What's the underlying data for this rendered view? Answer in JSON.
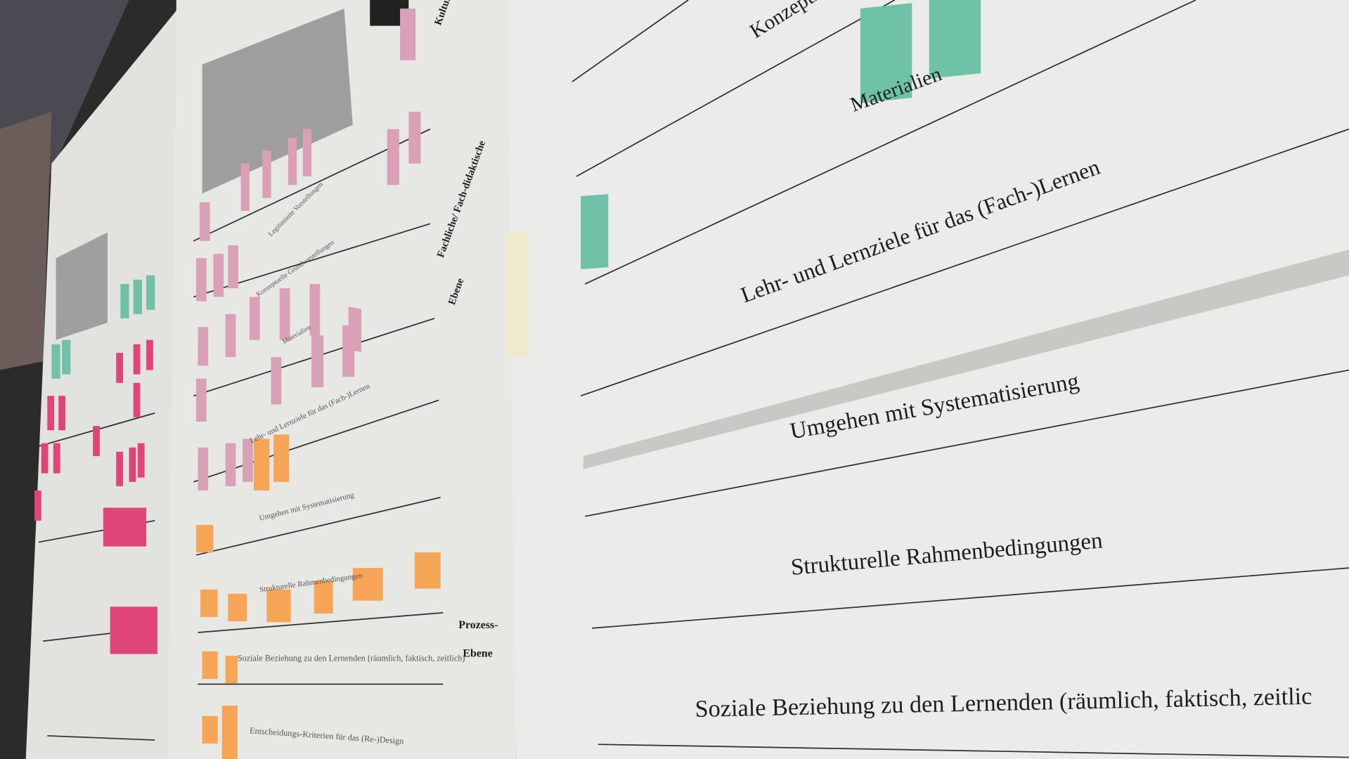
{
  "colors": {
    "paper": "#ebebe9",
    "paper_left": "#e4e4e2",
    "teal_note": "#6fc2a8",
    "pink_note": "#d9a0b8",
    "magenta_note": "#e0457a",
    "orange_note": "#f6a456",
    "wall": "#2a2b2a"
  },
  "main_poster": {
    "rows": [
      "Konzepti",
      "Materialien",
      "Lehr- und Lernziele für das (Fach-)Lernen",
      "Umgehen mit Systematisierung",
      "Strukturelle Rahmenbedingungen",
      "Soziale Beziehung zu den Lernenden (räumlich, faktisch, zeitlic"
    ]
  },
  "middle_poster": {
    "level_labels": [
      "Kultur-Ebene",
      "Fachliche/ Fach-didaktische",
      "Ebene",
      "Prozess-",
      "Ebene"
    ],
    "rows": [
      "Legitimierte Vorstellungen",
      "Konzeptuelle Grundvorstellungen",
      "Materialien",
      "Lehr- und Lernziele für das (Fach-)Lernen",
      "Umgehen mit Systematisierung",
      "Strukturelle Rahmenbedingungen",
      "Soziale Beziehung zu den Lernenden (räumlich, faktisch, zeitlich)",
      "Entscheidungs-Kriterien für das (Re-)Design"
    ]
  }
}
